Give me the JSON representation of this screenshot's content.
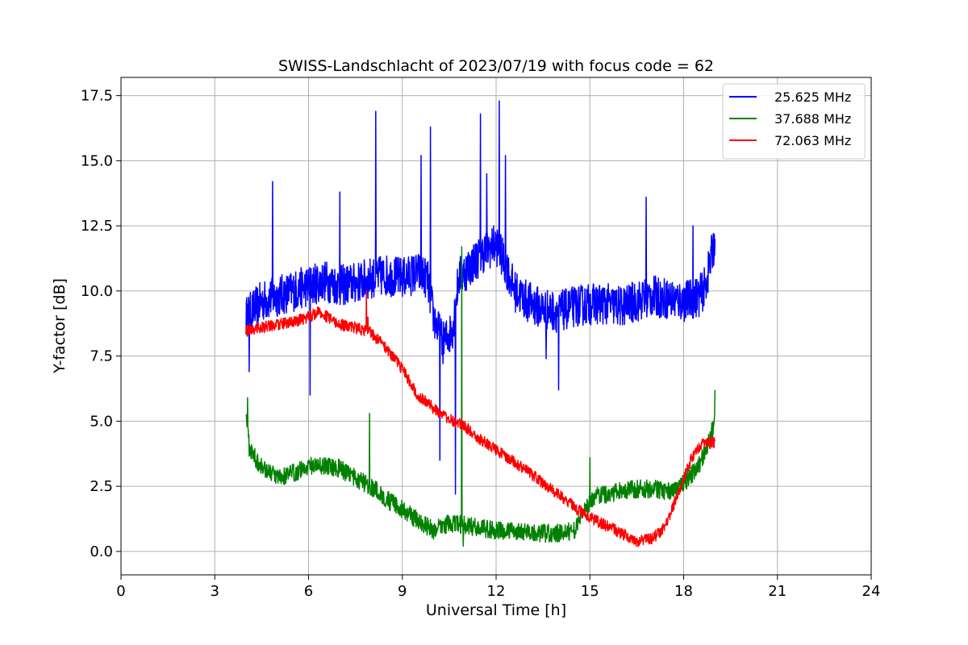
{
  "chart_data": {
    "type": "line",
    "title": "SWISS-Landschlacht of 2023/07/19 with focus code = 62",
    "xlabel": "Universal Time [h]",
    "ylabel": "Y-factor [dB]",
    "xlim": [
      0,
      24
    ],
    "ylim": [
      -0.9,
      18.2
    ],
    "xticks": [
      0,
      3,
      6,
      9,
      12,
      15,
      18,
      21,
      24
    ],
    "xtick_labels": [
      "0",
      "3",
      "6",
      "9",
      "12",
      "15",
      "18",
      "21",
      "24"
    ],
    "yticks": [
      0,
      2.5,
      5,
      7.5,
      10,
      12.5,
      15,
      17.5
    ],
    "ytick_labels": [
      "0.0",
      "2.5",
      "5.0",
      "7.5",
      "10.0",
      "12.5",
      "15.0",
      "17.5"
    ],
    "grid": true,
    "legend_position": "top-right",
    "series": [
      {
        "name": "25.625 MHz",
        "color": "#0000ff",
        "noise": 0.8,
        "points": [
          [
            4.0,
            9.0
          ],
          [
            4.5,
            9.6
          ],
          [
            5.0,
            9.8
          ],
          [
            5.5,
            10.0
          ],
          [
            6.0,
            10.2
          ],
          [
            6.5,
            10.4
          ],
          [
            7.0,
            10.2
          ],
          [
            7.5,
            10.3
          ],
          [
            8.0,
            10.5
          ],
          [
            8.5,
            10.6
          ],
          [
            9.0,
            10.5
          ],
          [
            9.5,
            10.7
          ],
          [
            9.8,
            10.5
          ],
          [
            10.0,
            9.0
          ],
          [
            10.3,
            8.0
          ],
          [
            10.6,
            8.5
          ],
          [
            10.8,
            10.5
          ],
          [
            11.2,
            11.0
          ],
          [
            11.6,
            11.5
          ],
          [
            12.0,
            11.8
          ],
          [
            12.3,
            11.0
          ],
          [
            12.6,
            10.0
          ],
          [
            13.0,
            9.6
          ],
          [
            13.5,
            9.3
          ],
          [
            14.0,
            9.2
          ],
          [
            14.5,
            9.4
          ],
          [
            15.0,
            9.5
          ],
          [
            15.5,
            9.5
          ],
          [
            16.0,
            9.4
          ],
          [
            16.5,
            9.6
          ],
          [
            17.0,
            9.8
          ],
          [
            17.5,
            9.7
          ],
          [
            18.0,
            9.6
          ],
          [
            18.5,
            9.8
          ],
          [
            18.7,
            10.2
          ],
          [
            19.0,
            12.0
          ]
        ],
        "spikes": [
          [
            4.1,
            6.9
          ],
          [
            4.85,
            14.2
          ],
          [
            6.05,
            6.0
          ],
          [
            7.0,
            13.8
          ],
          [
            8.15,
            16.9
          ],
          [
            9.6,
            15.2
          ],
          [
            9.9,
            16.3
          ],
          [
            10.2,
            3.5
          ],
          [
            10.7,
            2.2
          ],
          [
            11.5,
            16.8
          ],
          [
            11.7,
            14.5
          ],
          [
            12.1,
            17.3
          ],
          [
            12.3,
            15.2
          ],
          [
            13.6,
            7.4
          ],
          [
            14.0,
            6.2
          ],
          [
            16.8,
            13.6
          ],
          [
            18.3,
            12.5
          ]
        ]
      },
      {
        "name": "37.688 MHz",
        "color": "#008000",
        "noise": 0.35,
        "points": [
          [
            4.0,
            5.5
          ],
          [
            4.1,
            4.0
          ],
          [
            4.4,
            3.4
          ],
          [
            4.8,
            3.0
          ],
          [
            5.0,
            2.8
          ],
          [
            5.5,
            3.0
          ],
          [
            6.0,
            3.3
          ],
          [
            6.5,
            3.3
          ],
          [
            7.0,
            3.2
          ],
          [
            7.5,
            2.8
          ],
          [
            8.0,
            2.5
          ],
          [
            8.5,
            2.0
          ],
          [
            9.0,
            1.6
          ],
          [
            9.5,
            1.2
          ],
          [
            10.0,
            0.8
          ],
          [
            10.5,
            1.1
          ],
          [
            11.0,
            1.0
          ],
          [
            11.5,
            0.9
          ],
          [
            12.0,
            0.8
          ],
          [
            12.5,
            0.8
          ],
          [
            13.0,
            0.7
          ],
          [
            13.5,
            0.7
          ],
          [
            14.0,
            0.7
          ],
          [
            14.5,
            0.8
          ],
          [
            14.8,
            1.6
          ],
          [
            15.2,
            2.1
          ],
          [
            15.5,
            2.2
          ],
          [
            16.0,
            2.3
          ],
          [
            16.5,
            2.4
          ],
          [
            17.0,
            2.4
          ],
          [
            17.5,
            2.3
          ],
          [
            18.0,
            2.6
          ],
          [
            18.5,
            3.3
          ],
          [
            18.8,
            4.2
          ],
          [
            19.0,
            5.0
          ]
        ],
        "spikes": [
          [
            4.05,
            5.9
          ],
          [
            7.95,
            5.3
          ],
          [
            10.9,
            11.7
          ],
          [
            10.95,
            0.2
          ],
          [
            15.0,
            3.6
          ],
          [
            19.0,
            6.2
          ]
        ]
      },
      {
        "name": "72.063 MHz",
        "color": "#ff0000",
        "noise": 0.22,
        "points": [
          [
            4.0,
            8.5
          ],
          [
            4.5,
            8.6
          ],
          [
            5.0,
            8.7
          ],
          [
            5.5,
            8.8
          ],
          [
            6.0,
            9.0
          ],
          [
            6.3,
            9.2
          ],
          [
            6.6,
            9.0
          ],
          [
            7.0,
            8.7
          ],
          [
            7.5,
            8.6
          ],
          [
            8.0,
            8.4
          ],
          [
            8.5,
            7.8
          ],
          [
            9.0,
            7.0
          ],
          [
            9.5,
            6.0
          ],
          [
            10.0,
            5.5
          ],
          [
            10.5,
            5.1
          ],
          [
            11.0,
            4.8
          ],
          [
            11.5,
            4.3
          ],
          [
            12.0,
            3.9
          ],
          [
            12.5,
            3.5
          ],
          [
            13.0,
            3.1
          ],
          [
            13.5,
            2.6
          ],
          [
            14.0,
            2.2
          ],
          [
            14.5,
            1.7
          ],
          [
            15.0,
            1.3
          ],
          [
            15.5,
            1.0
          ],
          [
            16.0,
            0.7
          ],
          [
            16.5,
            0.4
          ],
          [
            17.0,
            0.5
          ],
          [
            17.3,
            0.8
          ],
          [
            17.6,
            1.5
          ],
          [
            18.0,
            2.8
          ],
          [
            18.3,
            3.7
          ],
          [
            18.6,
            4.1
          ],
          [
            19.0,
            4.2
          ]
        ],
        "spikes": [
          [
            7.85,
            10.0
          ],
          [
            7.9,
            9.0
          ]
        ]
      }
    ]
  }
}
